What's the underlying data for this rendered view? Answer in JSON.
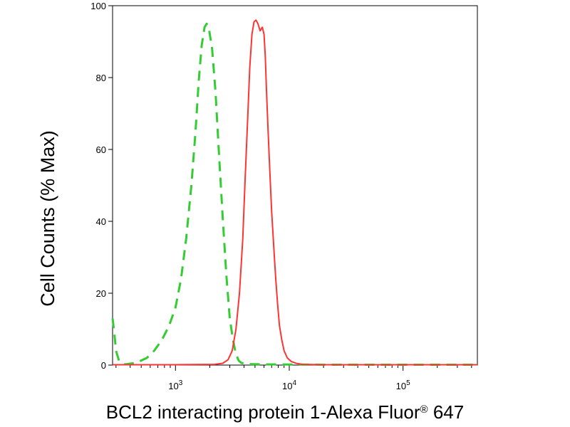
{
  "chart_data": {
    "type": "line",
    "title": "",
    "xlabel_main": "BCL2 interacting protein 1-Alexa Fluor",
    "xlabel_reg": "®",
    "xlabel_tail": " 647",
    "ylabel": "Cell Counts (% Max)",
    "xscale": "log",
    "xlim": [
      280,
      450000
    ],
    "ylim": [
      0,
      100
    ],
    "x_ticks": [
      {
        "exp": "3",
        "value": 1000
      },
      {
        "exp": "4",
        "value": 10000
      },
      {
        "exp": "5",
        "value": 100000
      }
    ],
    "y_ticks": [
      {
        "label": "0",
        "value": 0
      },
      {
        "label": "20",
        "value": 20
      },
      {
        "label": "40",
        "value": 40
      },
      {
        "label": "60",
        "value": 60
      },
      {
        "label": "80",
        "value": 80
      },
      {
        "label": "100",
        "value": 100
      }
    ],
    "grid": false,
    "legend": "none",
    "series": [
      {
        "style": "dashed",
        "color": "#33cc33",
        "points": [
          [
            280,
            13
          ],
          [
            290,
            9
          ],
          [
            300,
            4
          ],
          [
            320,
            1
          ],
          [
            360,
            0.2
          ],
          [
            420,
            0.5
          ],
          [
            480,
            1
          ],
          [
            560,
            2
          ],
          [
            650,
            4
          ],
          [
            760,
            7
          ],
          [
            880,
            11
          ],
          [
            1000,
            16
          ],
          [
            1120,
            24
          ],
          [
            1240,
            35
          ],
          [
            1380,
            50
          ],
          [
            1500,
            65
          ],
          [
            1600,
            79
          ],
          [
            1700,
            89
          ],
          [
            1800,
            94
          ],
          [
            1880,
            95
          ],
          [
            1980,
            93
          ],
          [
            2100,
            88
          ],
          [
            2250,
            76
          ],
          [
            2400,
            60
          ],
          [
            2600,
            41
          ],
          [
            2800,
            25
          ],
          [
            3000,
            13
          ],
          [
            3200,
            7
          ],
          [
            3400,
            3
          ],
          [
            3600,
            1.2
          ],
          [
            3800,
            0.6
          ],
          [
            4300,
            0.3
          ],
          [
            6000,
            0.2
          ],
          [
            20000,
            0.1
          ],
          [
            60000,
            0.1
          ],
          [
            200000,
            0.1
          ],
          [
            450000,
            0.1
          ]
        ]
      },
      {
        "style": "solid",
        "color": "#ff3333",
        "points": [
          [
            280,
            0.1
          ],
          [
            1000,
            0.1
          ],
          [
            2200,
            0.2
          ],
          [
            2600,
            0.5
          ],
          [
            2900,
            1.5
          ],
          [
            3150,
            4
          ],
          [
            3400,
            10
          ],
          [
            3650,
            20
          ],
          [
            3900,
            35
          ],
          [
            4100,
            52
          ],
          [
            4300,
            68
          ],
          [
            4500,
            83
          ],
          [
            4700,
            92
          ],
          [
            4900,
            95.5
          ],
          [
            5100,
            96
          ],
          [
            5300,
            95
          ],
          [
            5550,
            93
          ],
          [
            5800,
            94
          ],
          [
            6000,
            92
          ],
          [
            6150,
            86
          ],
          [
            6300,
            77
          ],
          [
            6500,
            66
          ],
          [
            6750,
            54
          ],
          [
            7000,
            43
          ],
          [
            7300,
            33
          ],
          [
            7600,
            24
          ],
          [
            7900,
            17
          ],
          [
            8200,
            11
          ],
          [
            8600,
            7
          ],
          [
            9000,
            4
          ],
          [
            9600,
            2
          ],
          [
            10400,
            1
          ],
          [
            11500,
            0.5
          ],
          [
            13000,
            0.2
          ],
          [
            20000,
            0.1
          ],
          [
            60000,
            0.1
          ],
          [
            200000,
            0.1
          ],
          [
            450000,
            0.1
          ]
        ]
      }
    ]
  }
}
